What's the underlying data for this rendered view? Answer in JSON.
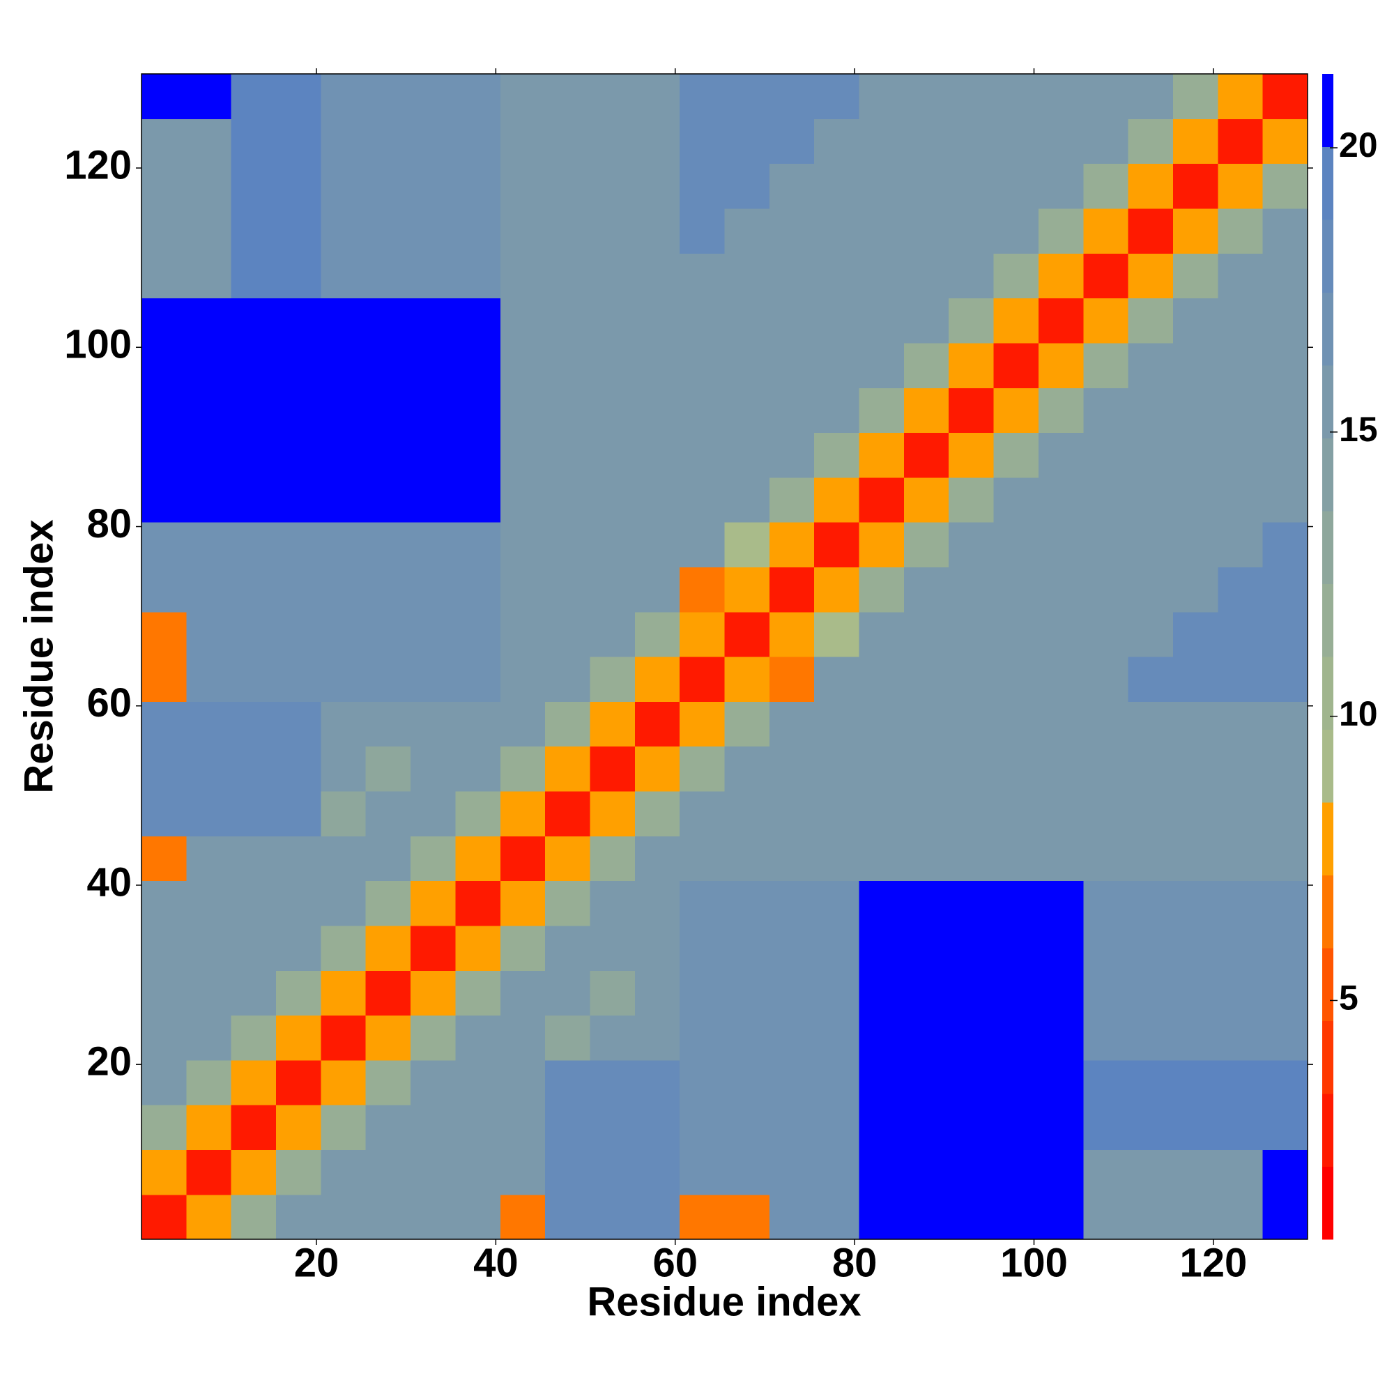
{
  "chart_data": {
    "type": "heatmap",
    "x_label": "Residue index",
    "y_label": "Residue index",
    "xlim": [
      0.5,
      130.5
    ],
    "ylim": [
      0.5,
      130.5
    ],
    "xticks": [
      20,
      40,
      60,
      80,
      100,
      120
    ],
    "yticks": [
      20,
      40,
      60,
      80,
      100,
      120
    ],
    "xbins": [
      0.5,
      5.5,
      10.5,
      15.5,
      20.5,
      25.5,
      30.5,
      35.5,
      40.5,
      45.5,
      50.5,
      55.5,
      60.5,
      65.5,
      70.5,
      75.5,
      80.5,
      85.5,
      90.5,
      95.5,
      100.5,
      105.5,
      110.5,
      115.5,
      120.5,
      125.5,
      130.5
    ],
    "ybins": [
      0.5,
      5.5,
      10.5,
      15.5,
      20.5,
      25.5,
      30.5,
      35.5,
      40.5,
      45.5,
      50.5,
      55.5,
      60.5,
      65.5,
      70.5,
      75.5,
      80.5,
      85.5,
      90.5,
      95.5,
      100.5,
      105.5,
      110.5,
      115.5,
      120.5,
      125.5,
      130.5
    ],
    "clim": [
      0.8,
      21.3
    ],
    "colorbar_ticks": [
      5,
      10,
      15,
      20
    ],
    "colorscale": [
      "#ff0000",
      "#ff1a00",
      "#ff3800",
      "#ff5500",
      "#ff7700",
      "#ffa000",
      "#a9bb8a",
      "#a0b58e",
      "#97ae95",
      "#8ea79c",
      "#84a0a4",
      "#7b99ab",
      "#7092b3",
      "#668bba",
      "#5c84c0",
      "#0000ff"
    ],
    "z": [
      [
        3,
        8,
        12,
        15,
        16,
        16,
        16,
        16,
        7,
        18,
        18,
        18,
        7,
        7,
        17,
        17,
        21,
        21,
        21,
        21,
        21,
        16,
        16,
        16,
        16,
        21
      ],
      [
        8,
        3,
        8,
        12,
        15,
        16,
        16,
        16,
        16,
        18,
        18,
        18,
        17,
        17,
        17,
        17,
        21,
        21,
        21,
        21,
        21,
        16,
        16,
        16,
        16,
        21
      ],
      [
        12,
        8,
        3,
        8,
        12,
        15,
        16,
        16,
        16,
        18,
        18,
        18,
        17,
        17,
        17,
        17,
        21,
        21,
        21,
        21,
        21,
        19,
        19,
        19,
        19,
        19
      ],
      [
        15,
        12,
        8,
        3,
        8,
        12,
        15,
        16,
        16,
        18,
        18,
        18,
        17,
        17,
        17,
        17,
        21,
        21,
        21,
        21,
        21,
        19,
        19,
        19,
        19,
        19
      ],
      [
        16,
        15,
        12,
        8,
        3,
        8,
        12,
        15,
        16,
        13,
        16,
        16,
        17,
        17,
        17,
        17,
        21,
        21,
        21,
        21,
        21,
        17,
        17,
        17,
        17,
        17
      ],
      [
        16,
        16,
        15,
        12,
        8,
        3,
        8,
        12,
        15,
        16,
        13,
        16,
        17,
        17,
        17,
        17,
        21,
        21,
        21,
        21,
        21,
        17,
        17,
        17,
        17,
        17
      ],
      [
        16,
        16,
        16,
        15,
        12,
        8,
        3,
        8,
        12,
        15,
        16,
        16,
        17,
        17,
        17,
        17,
        21,
        21,
        21,
        21,
        21,
        17,
        17,
        17,
        17,
        17
      ],
      [
        16,
        16,
        16,
        16,
        15,
        12,
        8,
        3,
        8,
        12,
        15,
        16,
        17,
        17,
        17,
        17,
        21,
        21,
        21,
        21,
        21,
        17,
        17,
        17,
        17,
        17
      ],
      [
        7,
        16,
        16,
        16,
        16,
        15,
        12,
        8,
        3,
        8,
        12,
        15,
        15,
        15,
        15,
        15,
        15,
        15,
        15,
        15,
        16,
        16,
        16,
        16,
        16,
        16
      ],
      [
        18,
        18,
        18,
        18,
        13,
        16,
        15,
        12,
        8,
        3,
        8,
        12,
        15,
        15,
        15,
        15,
        15,
        15,
        15,
        15,
        16,
        16,
        16,
        16,
        16,
        16
      ],
      [
        18,
        18,
        18,
        18,
        16,
        13,
        16,
        15,
        12,
        8,
        3,
        8,
        12,
        15,
        15,
        15,
        15,
        15,
        15,
        15,
        16,
        16,
        16,
        16,
        16,
        16
      ],
      [
        18,
        18,
        18,
        18,
        16,
        16,
        16,
        16,
        15,
        12,
        8,
        3,
        8,
        12,
        15,
        15,
        15,
        15,
        15,
        15,
        16,
        16,
        16,
        16,
        16,
        16
      ],
      [
        7,
        17,
        17,
        17,
        17,
        17,
        17,
        17,
        15,
        15,
        12,
        8,
        3,
        8,
        7,
        15,
        16,
        16,
        16,
        16,
        16,
        16,
        18,
        18,
        18,
        18
      ],
      [
        7,
        17,
        17,
        17,
        17,
        17,
        17,
        17,
        15,
        15,
        15,
        12,
        8,
        3,
        8,
        9,
        15,
        16,
        16,
        16,
        16,
        16,
        16,
        18,
        18,
        18
      ],
      [
        17,
        17,
        17,
        17,
        17,
        17,
        17,
        17,
        15,
        15,
        15,
        15,
        7,
        8,
        3,
        8,
        12,
        15,
        16,
        16,
        16,
        16,
        16,
        16,
        18,
        18
      ],
      [
        17,
        17,
        17,
        17,
        17,
        17,
        17,
        17,
        15,
        15,
        15,
        15,
        15,
        9,
        8,
        3,
        8,
        12,
        15,
        16,
        16,
        16,
        16,
        16,
        16,
        18
      ],
      [
        21,
        21,
        21,
        21,
        21,
        21,
        21,
        21,
        15,
        15,
        15,
        15,
        16,
        15,
        12,
        8,
        3,
        8,
        12,
        15,
        16,
        16,
        16,
        16,
        16,
        16
      ],
      [
        21,
        21,
        21,
        21,
        21,
        21,
        21,
        21,
        15,
        15,
        15,
        15,
        16,
        16,
        15,
        12,
        8,
        3,
        8,
        12,
        15,
        16,
        16,
        16,
        16,
        16
      ],
      [
        21,
        21,
        21,
        21,
        21,
        21,
        21,
        21,
        15,
        15,
        15,
        15,
        16,
        16,
        16,
        15,
        12,
        8,
        3,
        8,
        12,
        15,
        16,
        16,
        16,
        16
      ],
      [
        21,
        21,
        21,
        21,
        21,
        21,
        21,
        21,
        15,
        15,
        15,
        15,
        16,
        16,
        16,
        16,
        15,
        12,
        8,
        3,
        8,
        12,
        15,
        16,
        16,
        16
      ],
      [
        21,
        21,
        21,
        21,
        21,
        21,
        21,
        21,
        16,
        16,
        16,
        16,
        16,
        16,
        16,
        16,
        16,
        15,
        12,
        8,
        3,
        8,
        12,
        15,
        16,
        16
      ],
      [
        16,
        16,
        19,
        19,
        17,
        17,
        17,
        17,
        16,
        16,
        16,
        16,
        16,
        16,
        16,
        16,
        16,
        16,
        15,
        12,
        8,
        3,
        8,
        12,
        15,
        16
      ],
      [
        16,
        16,
        19,
        19,
        17,
        17,
        17,
        17,
        16,
        16,
        16,
        16,
        18,
        16,
        16,
        16,
        16,
        16,
        16,
        15,
        12,
        8,
        3,
        8,
        12,
        15
      ],
      [
        16,
        16,
        19,
        19,
        17,
        17,
        17,
        17,
        16,
        16,
        16,
        16,
        18,
        18,
        16,
        16,
        16,
        16,
        16,
        16,
        15,
        12,
        8,
        3,
        8,
        12
      ],
      [
        16,
        16,
        19,
        19,
        17,
        17,
        17,
        17,
        16,
        16,
        16,
        16,
        18,
        18,
        18,
        16,
        16,
        16,
        16,
        16,
        16,
        15,
        12,
        8,
        3,
        8
      ],
      [
        21,
        21,
        19,
        19,
        17,
        17,
        17,
        17,
        16,
        16,
        16,
        16,
        18,
        18,
        18,
        18,
        16,
        16,
        16,
        16,
        16,
        16,
        15,
        12,
        8,
        3
      ]
    ]
  }
}
